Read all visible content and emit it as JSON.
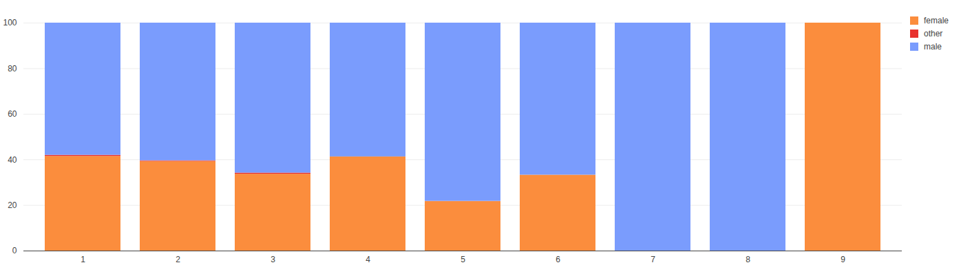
{
  "chart_data": {
    "type": "bar",
    "stacked": true,
    "categories": [
      "1",
      "2",
      "3",
      "4",
      "5",
      "6",
      "7",
      "8",
      "9"
    ],
    "series": [
      {
        "name": "female",
        "color": "#fb8d3d",
        "values": [
          41.5,
          39.3,
          33.7,
          41.3,
          21.8,
          33.3,
          0,
          0,
          100
        ]
      },
      {
        "name": "other",
        "color": "#e8312e",
        "values": [
          0.5,
          0.3,
          0.5,
          0,
          0,
          0,
          0,
          0,
          0
        ]
      },
      {
        "name": "male",
        "color": "#7a9cfd",
        "values": [
          58,
          60.4,
          65.8,
          58.7,
          78.2,
          66.7,
          100,
          100,
          0
        ]
      }
    ],
    "ylim": [
      0,
      100
    ],
    "yticks": [
      0,
      20,
      40,
      60,
      80,
      100
    ],
    "grid": true,
    "legend": "top-right"
  }
}
